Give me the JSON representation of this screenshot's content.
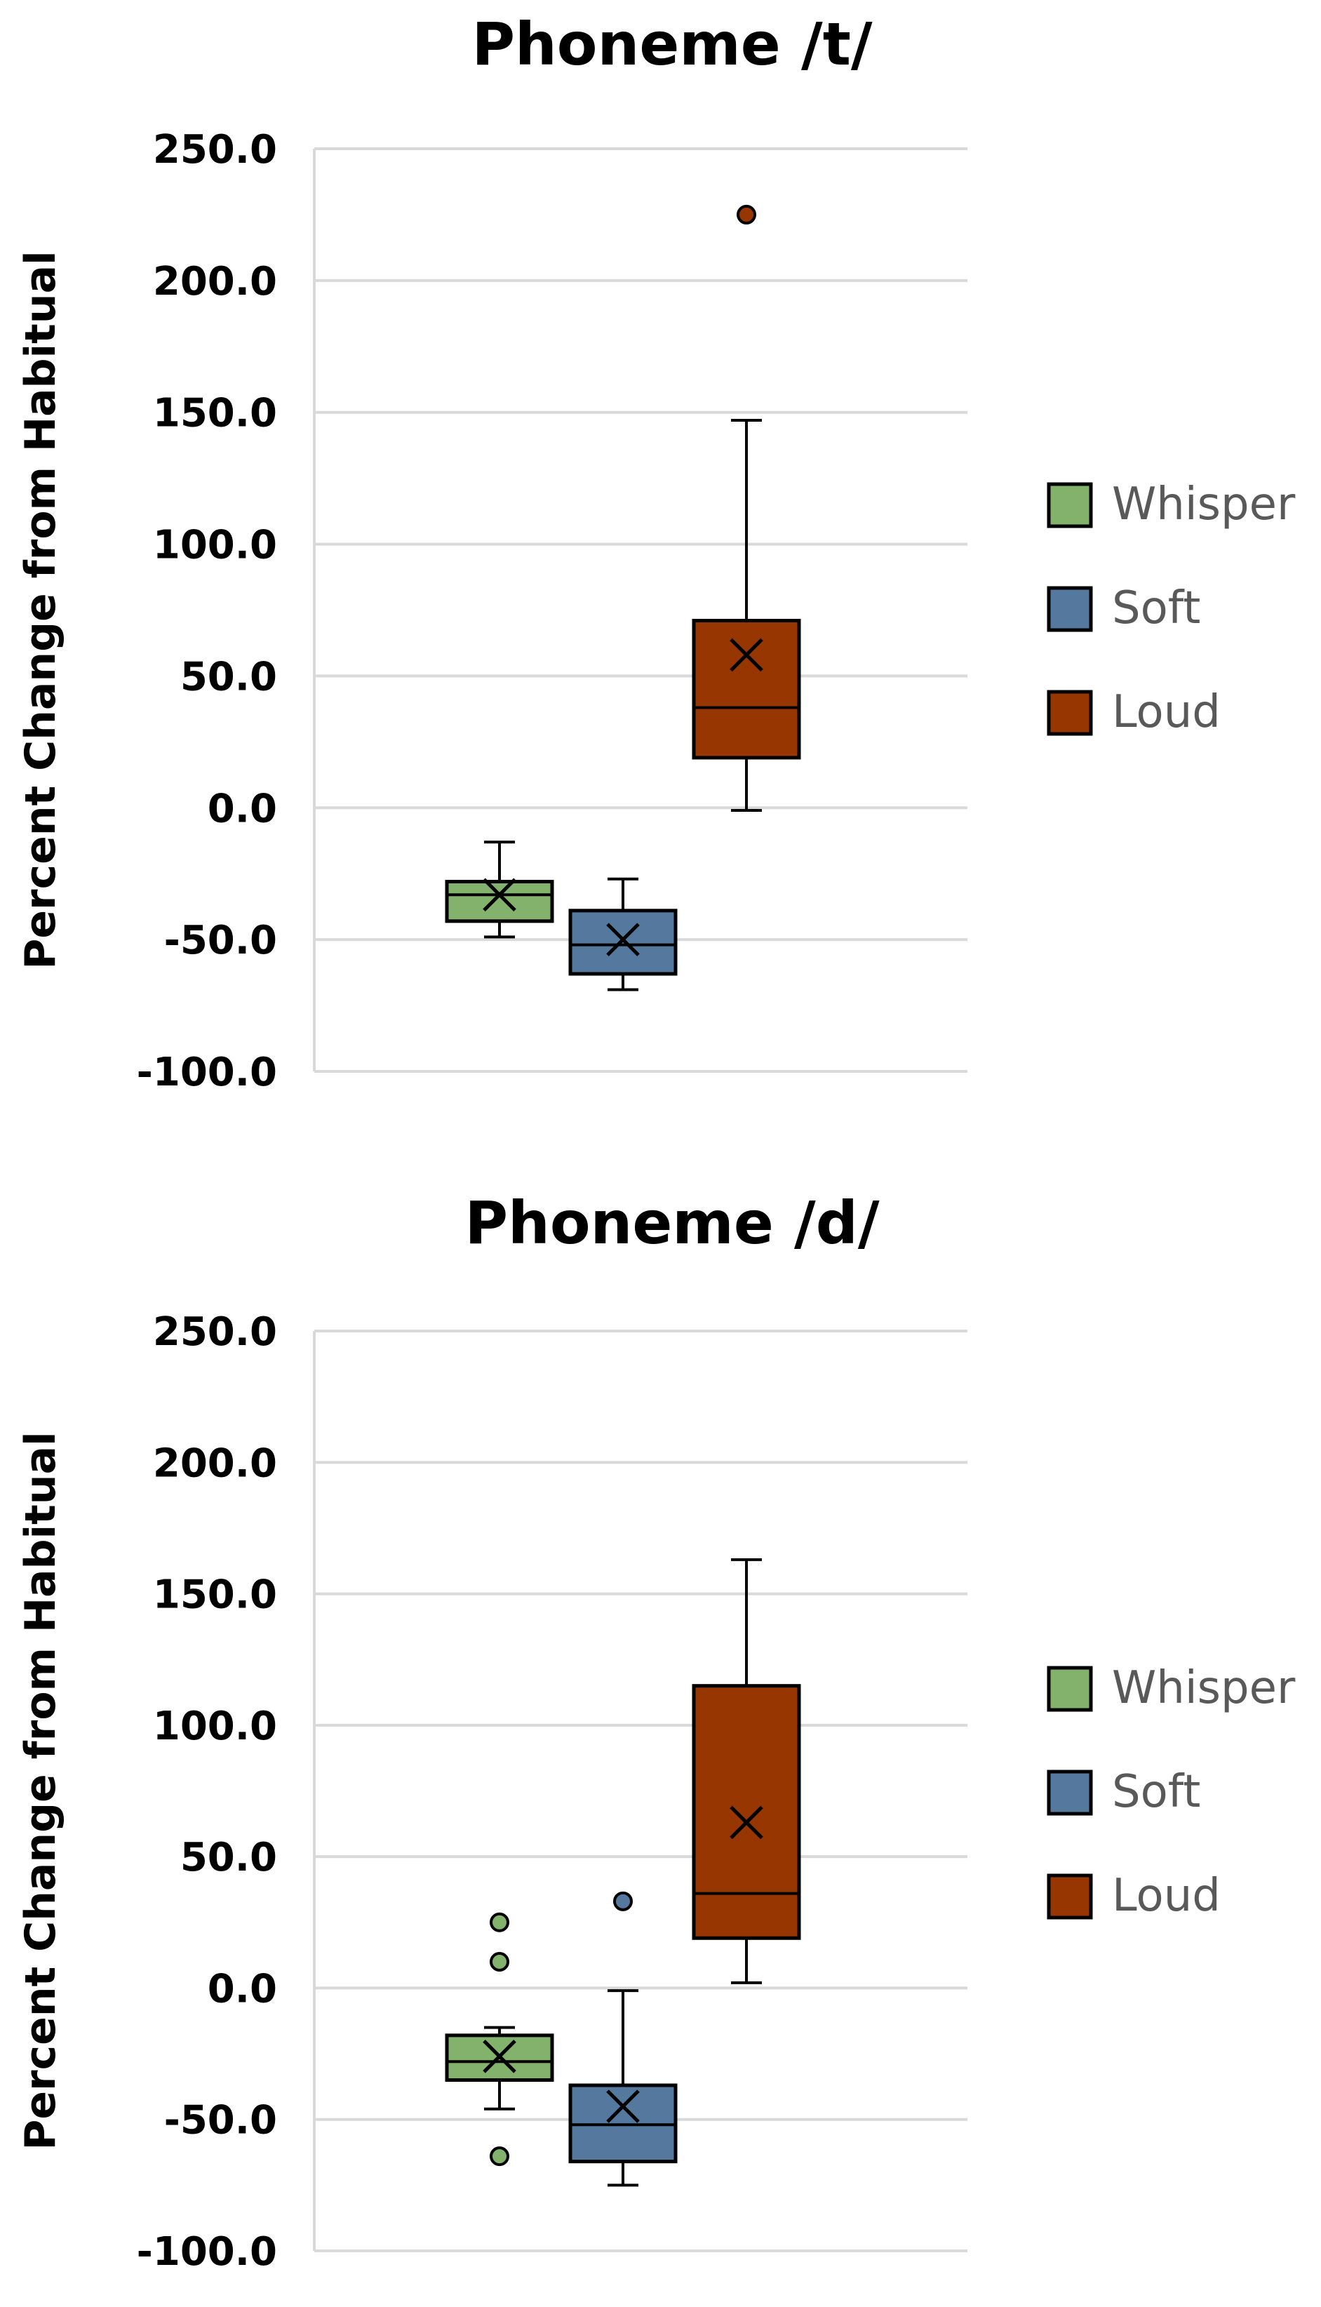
{
  "colors": {
    "Whisper": "#82b26c",
    "Soft": "#54789e",
    "Loud": "#973600",
    "grid": "#d9d9d9",
    "box_stroke": "#000000"
  },
  "chart_data": [
    {
      "type": "box",
      "title": "Phoneme /t/",
      "ylabel": "Percent Change from Habitual",
      "ylim": [
        -100,
        250
      ],
      "yticks": [
        250,
        200,
        150,
        100,
        50,
        0,
        -50,
        -100
      ],
      "ytick_labels": [
        "250.0",
        "200.0",
        "150.0",
        "100.0",
        "50.0",
        "0.0",
        "-50.0",
        "-100.0"
      ],
      "grid": true,
      "legend_position": "right",
      "legend": [
        "Whisper",
        "Soft",
        "Loud"
      ],
      "series": [
        {
          "name": "Whisper",
          "whisker_low": -49,
          "q1": -43,
          "median": -33,
          "q3": -28,
          "whisker_high": -13,
          "mean": -33,
          "outliers": []
        },
        {
          "name": "Soft",
          "whisker_low": -69,
          "q1": -63,
          "median": -52,
          "q3": -39,
          "whisker_high": -27,
          "mean": -50,
          "outliers": []
        },
        {
          "name": "Loud",
          "whisker_low": -1,
          "q1": 19,
          "median": 38,
          "q3": 71,
          "whisker_high": 147,
          "mean": 58,
          "outliers": [
            225
          ]
        }
      ]
    },
    {
      "type": "box",
      "title": "Phoneme /d/",
      "ylabel": "Percent Change from Habitual",
      "ylim": [
        -100,
        250
      ],
      "yticks": [
        250,
        200,
        150,
        100,
        50,
        0,
        -50,
        -100
      ],
      "ytick_labels": [
        "250.0",
        "200.0",
        "150.0",
        "100.0",
        "50.0",
        "0.0",
        "-50.0",
        "-100.0"
      ],
      "grid": true,
      "legend_position": "right",
      "legend": [
        "Whisper",
        "Soft",
        "Loud"
      ],
      "series": [
        {
          "name": "Whisper",
          "whisker_low": -46,
          "q1": -35,
          "median": -28,
          "q3": -18,
          "whisker_high": -15,
          "mean": -26,
          "outliers": [
            25,
            10,
            -64
          ]
        },
        {
          "name": "Soft",
          "whisker_low": -75,
          "q1": -66,
          "median": -52,
          "q3": -37,
          "whisker_high": -1,
          "mean": -45,
          "outliers": [
            33
          ]
        },
        {
          "name": "Loud",
          "whisker_low": 2,
          "q1": 19,
          "median": 36,
          "q3": 115,
          "whisker_high": 163,
          "mean": 63,
          "outliers": []
        }
      ]
    }
  ]
}
